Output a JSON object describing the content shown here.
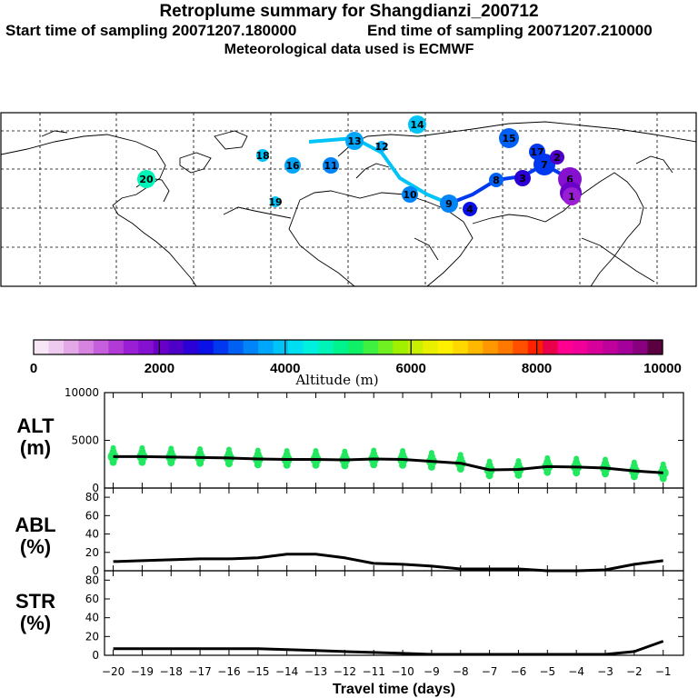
{
  "header": {
    "title": "Retroplume summary for Shangdianzi_200712",
    "start_label": "Start time of sampling 20071207.180000",
    "end_label": "End time of sampling 20071207.210000",
    "met_label": "Meteorological data used is ECMWF"
  },
  "colorbar": {
    "ticks": [
      "0",
      "2000",
      "4000",
      "6000",
      "8000",
      "10000"
    ],
    "label": "Altitude (m)",
    "colors": [
      "#f6e6f6",
      "#eecbee",
      "#e3a8e6",
      "#d783e0",
      "#c55fdc",
      "#b23bd6",
      "#9a1fd4",
      "#8510cf",
      "#6a00c8",
      "#4e00c8",
      "#2a00d6",
      "#0a10e6",
      "#0038f0",
      "#0060f4",
      "#0084f8",
      "#00a6fa",
      "#00c4f8",
      "#00def2",
      "#00f0e0",
      "#00f4b8",
      "#00f48e",
      "#10f066",
      "#40f040",
      "#70f020",
      "#a0f000",
      "#c8f000",
      "#e8f000",
      "#fff000",
      "#ffd800",
      "#ffb800",
      "#ff9800",
      "#ff7800",
      "#ff5000",
      "#ff2000",
      "#e8004a",
      "#ff0090",
      "#f00098",
      "#d8009a",
      "#c0009a",
      "#a4009a",
      "#880080",
      "#5a0040"
    ]
  },
  "map": {
    "markers": [
      {
        "day": "14",
        "color": "#00c4f8"
      },
      {
        "day": "15",
        "color": "#0060f4"
      },
      {
        "day": "17",
        "color": "#0038f0"
      },
      {
        "day": "16",
        "color": "#00a6fa"
      },
      {
        "day": "18",
        "color": "#00c4f8"
      },
      {
        "day": "19",
        "color": "#00c4f8"
      },
      {
        "day": "20",
        "color": "#00f4b8"
      },
      {
        "day": "11",
        "color": "#0084f8"
      },
      {
        "day": "13",
        "color": "#00a6fa"
      },
      {
        "day": "12",
        "color": "#00a6fa"
      },
      {
        "day": "10",
        "color": "#0084f8"
      },
      {
        "day": "9",
        "color": "#0084f8"
      },
      {
        "day": "8",
        "color": "#0060f4"
      },
      {
        "day": "7",
        "color": "#0038f0"
      },
      {
        "day": "6",
        "color": "#8510cf"
      },
      {
        "day": "5",
        "color": "#6a00c8"
      },
      {
        "day": "4",
        "color": "#0a10e6"
      },
      {
        "day": "3",
        "color": "#2a00d6"
      },
      {
        "day": "2",
        "color": "#4e00c8"
      },
      {
        "day": "1",
        "color": "#9a1fd4"
      }
    ]
  },
  "chart_data": [
    {
      "type": "line",
      "panel": "ALT",
      "title": "ALT (m)",
      "ylabel_line1": "ALT",
      "ylabel_line2": "(m)",
      "ylim": [
        0,
        10000
      ],
      "yticks": [
        "0",
        "5000",
        "10000"
      ],
      "x": [
        -20,
        -19,
        -18,
        -17,
        -16,
        -15,
        -14,
        -13,
        -12,
        -11,
        -10,
        -9,
        -8,
        -7,
        -6,
        -5,
        -4,
        -3,
        -2,
        -1
      ],
      "values": [
        3300,
        3300,
        3250,
        3200,
        3150,
        3050,
        3000,
        3000,
        2950,
        3050,
        3000,
        2800,
        2600,
        1900,
        1950,
        2250,
        2200,
        2100,
        1800,
        1600
      ],
      "scatter_color": "#22e860"
    },
    {
      "type": "line",
      "panel": "ABL",
      "title": "ABL (%)",
      "ylabel_line1": "ABL",
      "ylabel_line2": "(%)",
      "ylim": [
        0,
        90
      ],
      "yticks": [
        "0",
        "20",
        "40",
        "60",
        "80"
      ],
      "x": [
        -20,
        -19,
        -18,
        -17,
        -16,
        -15,
        -14,
        -13,
        -12,
        -11,
        -10,
        -9,
        -8,
        -7,
        -6,
        -5,
        -4,
        -3,
        -2,
        -1
      ],
      "values": [
        10,
        11,
        12,
        13,
        13,
        14,
        18,
        18,
        14,
        8,
        7,
        5,
        2,
        2,
        2,
        0,
        0,
        1,
        7,
        11
      ]
    },
    {
      "type": "line",
      "panel": "STR",
      "title": "STR (%)",
      "ylabel_line1": "STR",
      "ylabel_line2": "(%)",
      "ylim": [
        0,
        90
      ],
      "yticks": [
        "0",
        "20",
        "40",
        "60",
        "80"
      ],
      "x": [
        -20,
        -19,
        -18,
        -17,
        -16,
        -15,
        -14,
        -13,
        -12,
        -11,
        -10,
        -9,
        -8,
        -7,
        -6,
        -5,
        -4,
        -3,
        -2,
        -1
      ],
      "values": [
        7,
        7,
        7,
        7,
        7,
        7,
        6,
        5,
        4,
        3,
        2,
        1,
        1,
        1,
        1,
        1,
        1,
        1,
        4,
        15
      ],
      "xlabel": "Travel time (days)",
      "xticks": [
        "−20",
        "−19",
        "−18",
        "−17",
        "−16",
        "−15",
        "−14",
        "−13",
        "−12",
        "−11",
        "−10",
        "−9",
        "−8",
        "−7",
        "−6",
        "−5",
        "−4",
        "−3",
        "−2",
        "−1"
      ]
    }
  ]
}
